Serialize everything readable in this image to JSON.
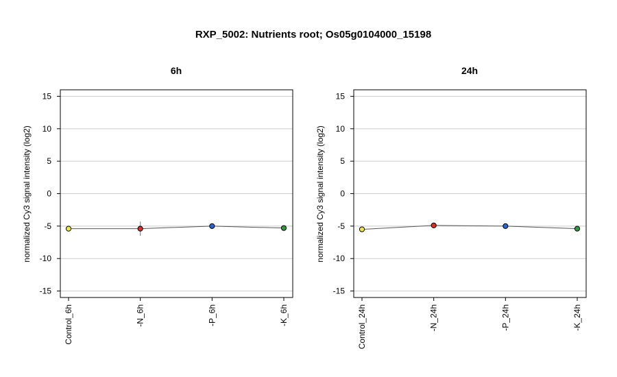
{
  "title": "RXP_5002: Nutrients root; Os05g0104000_15198",
  "chart_data": [
    {
      "type": "line",
      "title": "6h",
      "ylabel": "normalized Cy3 signal intensity (log2)",
      "ylim": [
        -16,
        16
      ],
      "yticks": [
        -15,
        -10,
        -5,
        0,
        5,
        10,
        15
      ],
      "grid": true,
      "categories": [
        "Control_6h",
        "-N_6h",
        "-P_6h",
        "-K_6h"
      ],
      "values": [
        -5.4,
        -5.4,
        -5.0,
        -5.3
      ],
      "errors": [
        0,
        1.1,
        0,
        0
      ],
      "point_colors": [
        "#f2e63a",
        "#d9302a",
        "#2166d9",
        "#2e9e3e"
      ]
    },
    {
      "type": "line",
      "title": "24h",
      "ylabel": "normalized Cy3 signal intensity (log2)",
      "ylim": [
        -16,
        16
      ],
      "yticks": [
        -15,
        -10,
        -5,
        0,
        5,
        10,
        15
      ],
      "grid": true,
      "categories": [
        "Control_24h",
        "-N_24h",
        "-P_24h",
        "-K_24h"
      ],
      "values": [
        -5.5,
        -4.9,
        -5.0,
        -5.4
      ],
      "errors": [
        0,
        0,
        0,
        0
      ],
      "point_colors": [
        "#f2e63a",
        "#d9302a",
        "#2166d9",
        "#2e9e3e"
      ]
    }
  ]
}
